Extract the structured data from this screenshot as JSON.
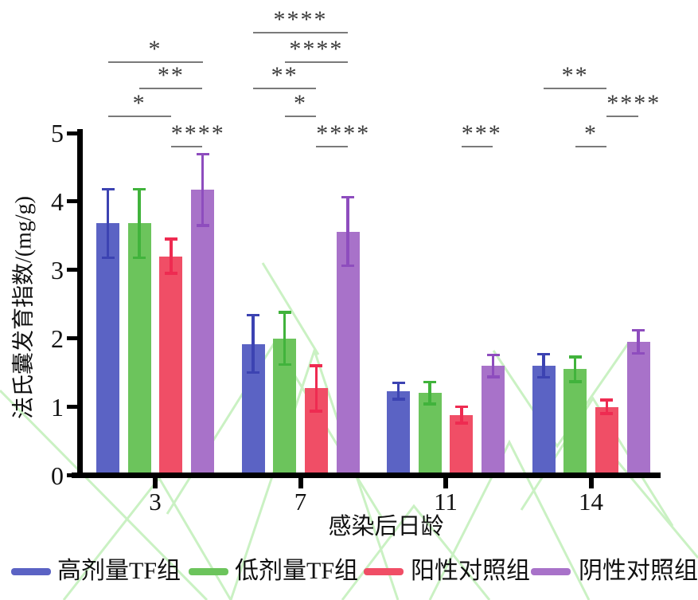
{
  "figure": {
    "background": "#ffffff",
    "watermark_color": "#97e489",
    "axis_color": "#000000",
    "significance_line_color": "#7a7a7a",
    "significance_star_color": "#3a3a3a"
  },
  "chart_data": {
    "type": "bar",
    "title": "",
    "xlabel": "感染后日龄",
    "ylabel": "法氏囊发育指数/(mg/g)",
    "ylim": [
      0,
      5
    ],
    "yticks": [
      0,
      1,
      2,
      3,
      4,
      5
    ],
    "grid": false,
    "legend_position": "bottom",
    "categories": [
      "3",
      "7",
      "11",
      "14"
    ],
    "series": [
      {
        "name": "高剂量TF组",
        "color": "#5b63c4",
        "error_color": "#3c43b2",
        "values": [
          3.68,
          1.92,
          1.23,
          1.6
        ],
        "errors": [
          0.5,
          0.42,
          0.12,
          0.17
        ]
      },
      {
        "name": "低剂量TF组",
        "color": "#6cc45c",
        "error_color": "#41b33c",
        "values": [
          3.68,
          2.0,
          1.2,
          1.55
        ],
        "errors": [
          0.5,
          0.38,
          0.16,
          0.18
        ]
      },
      {
        "name": "阳性对照组",
        "color": "#f04e66",
        "error_color": "#ee2b51",
        "values": [
          3.2,
          1.27,
          0.88,
          1.0
        ],
        "errors": [
          0.25,
          0.33,
          0.12,
          0.1
        ]
      },
      {
        "name": "阴性对照组",
        "color": "#a872c9",
        "error_color": "#8e4dbe",
        "values": [
          4.17,
          3.56,
          1.6,
          1.95
        ],
        "errors": [
          0.52,
          0.5,
          0.16,
          0.17
        ]
      }
    ],
    "significance": [
      {
        "group": "3",
        "between": [
          "高剂量TF组",
          "阴性对照组"
        ],
        "stars": "*",
        "tier": 1
      },
      {
        "group": "3",
        "between": [
          "低剂量TF组",
          "阴性对照组"
        ],
        "stars": "**",
        "tier": 2
      },
      {
        "group": "3",
        "between": [
          "高剂量TF组",
          "阳性对照组"
        ],
        "stars": "*",
        "tier": 3
      },
      {
        "group": "3",
        "between": [
          "阳性对照组",
          "阴性对照组"
        ],
        "stars": "****",
        "tier": 4
      },
      {
        "group": "7",
        "between": [
          "高剂量TF组",
          "阴性对照组"
        ],
        "stars": "****",
        "tier": 0
      },
      {
        "group": "7",
        "between": [
          "低剂量TF组",
          "阴性对照组"
        ],
        "stars": "****",
        "tier": 1
      },
      {
        "group": "7",
        "between": [
          "高剂量TF组",
          "阳性对照组"
        ],
        "stars": "**",
        "tier": 2
      },
      {
        "group": "7",
        "between": [
          "低剂量TF组",
          "阳性对照组"
        ],
        "stars": "*",
        "tier": 3
      },
      {
        "group": "7",
        "between": [
          "阳性对照组",
          "阴性对照组"
        ],
        "stars": "****",
        "tier": 4
      },
      {
        "group": "11",
        "between": [
          "阳性对照组",
          "阴性对照组"
        ],
        "stars": "***",
        "tier": 4
      },
      {
        "group": "14",
        "between": [
          "高剂量TF组",
          "阳性对照组"
        ],
        "stars": "**",
        "tier": 2
      },
      {
        "group": "14",
        "between": [
          "阳性对照组",
          "阴性对照组"
        ],
        "stars": "****",
        "tier": 3
      },
      {
        "group": "14",
        "between": [
          "低剂量TF组",
          "阳性对照组"
        ],
        "stars": "*",
        "tier": 4
      }
    ]
  }
}
